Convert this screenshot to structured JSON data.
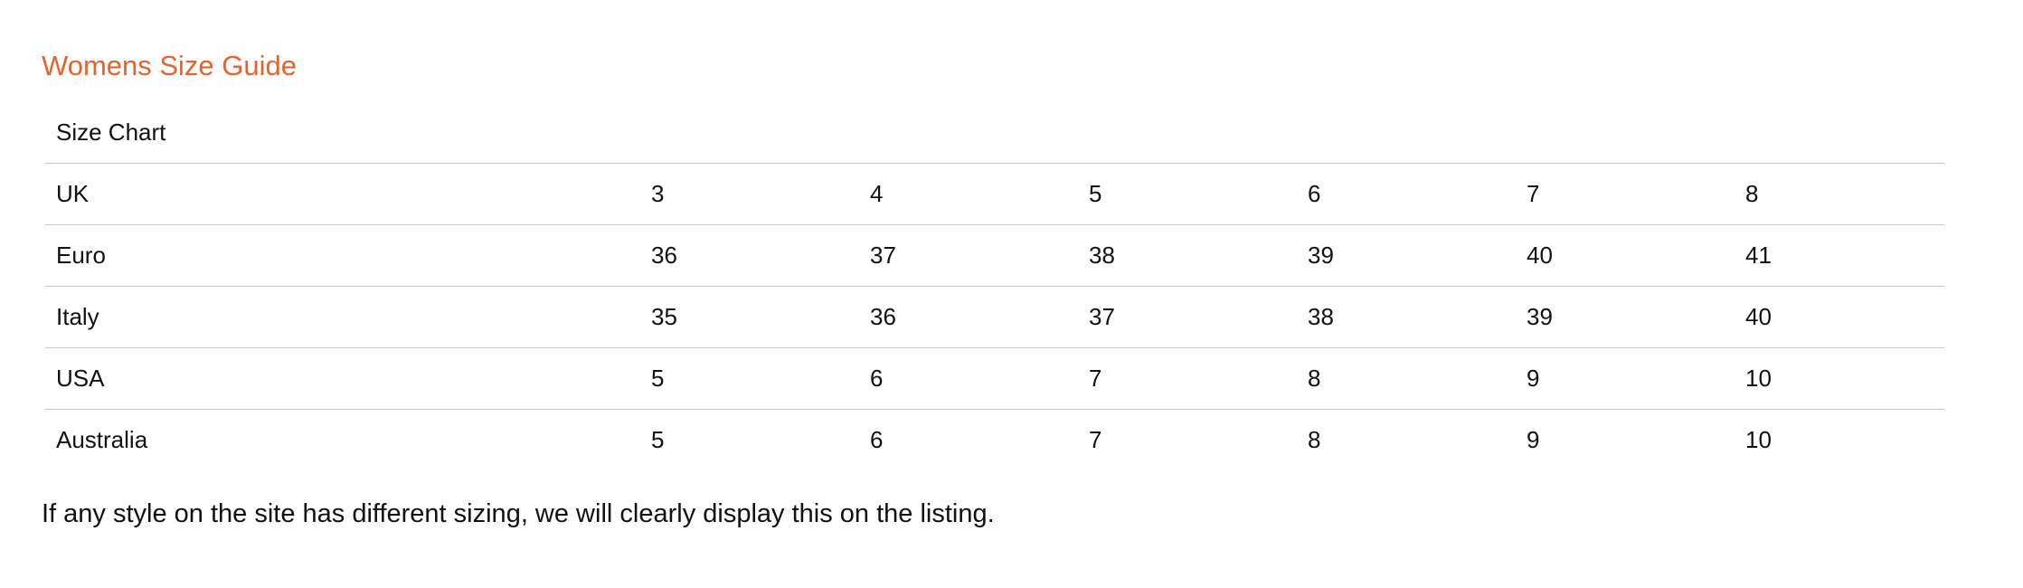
{
  "page": {
    "title": "Womens Size Guide",
    "footer_note": "If any style on the site has different sizing, we will clearly display this on the listing."
  },
  "colors": {
    "accent_heading": "#e8622e",
    "text": "#111111",
    "divider": "#c9c9c9"
  },
  "table": {
    "header": "Size Chart",
    "rows": [
      {
        "label": "UK",
        "values": [
          "3",
          "4",
          "5",
          "6",
          "7",
          "8"
        ]
      },
      {
        "label": "Euro",
        "values": [
          "36",
          "37",
          "38",
          "39",
          "40",
          "41"
        ]
      },
      {
        "label": "Italy",
        "values": [
          "35",
          "36",
          "37",
          "38",
          "39",
          "40"
        ]
      },
      {
        "label": "USA",
        "values": [
          "5",
          "6",
          "7",
          "8",
          "9",
          "10"
        ]
      },
      {
        "label": "Australia",
        "values": [
          "5",
          "6",
          "7",
          "8",
          "9",
          "10"
        ]
      }
    ]
  }
}
